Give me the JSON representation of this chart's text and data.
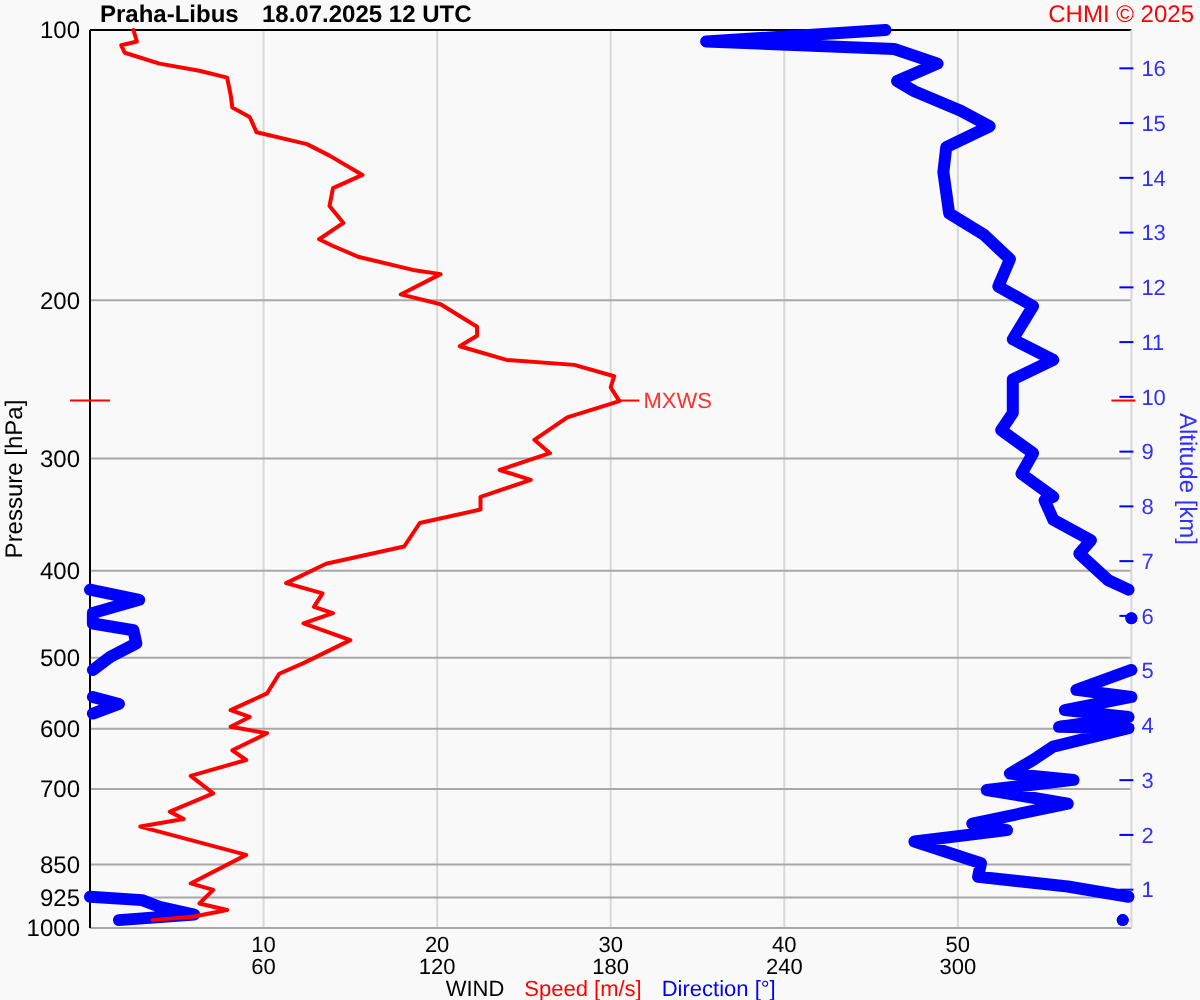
{
  "chart_data": {
    "type": "line",
    "title": "Praha-Libus",
    "subtitle": "18.07.2025 12 UTC",
    "xlabel": "WIND",
    "ylabel": "Pressure [hPa]",
    "y2label": "Altitude [km]",
    "annotations": [
      "CHMI © 2025",
      {
        "text": "MXWS",
        "x": 30.5,
        "y": 258.6
      }
    ],
    "xlim": [
      0,
      60
    ],
    "x2lim": [
      0,
      360
    ],
    "xticks": [
      10,
      20,
      30,
      40,
      50
    ],
    "x2ticks": [
      60,
      120,
      180,
      240,
      300
    ],
    "ylim": [
      1000,
      100
    ],
    "log": "y",
    "yticks": [
      100,
      200,
      300,
      400,
      500,
      600,
      700,
      850,
      925,
      1000
    ],
    "y2lim": [
      0.3,
      16.7
    ],
    "y2ticks": [
      1,
      2,
      3,
      4,
      5,
      6,
      7,
      8,
      9,
      10,
      11,
      12,
      13,
      14,
      15,
      16
    ],
    "grid": true,
    "legend": "bottom",
    "series": [
      {
        "name": "Speed [m/s]",
        "color": "#ff0000",
        "x": [
          2.5,
          2.7,
          1.8,
          2.0,
          4.0,
          6.3,
          7.9,
          8.1,
          8.2,
          9.2,
          9.6,
          12.5,
          13.8,
          15.7,
          14.0,
          13.8,
          14.6,
          13.2,
          14.0,
          15.5,
          18.6,
          20.2,
          17.9,
          20.2,
          22.3,
          22.3,
          21.3,
          24.0,
          27.9,
          30.2,
          30.0,
          30.5,
          27.5,
          25.6,
          26.5,
          23.6,
          25.4,
          22.5,
          22.5,
          22.5,
          19.0,
          18.1,
          13.6,
          11.3,
          13.4,
          12.9,
          14.0,
          12.3,
          15.0,
          12.3,
          10.9,
          10.2,
          8.1,
          9.2,
          8.1,
          10.2,
          8.2,
          9.0,
          5.8,
          7.1,
          4.6,
          5.4,
          2.9,
          9.0,
          5.8,
          7.1,
          6.3,
          7.9,
          6.0,
          3.6
        ],
        "values": [
          100,
          103,
          104,
          106,
          109,
          111,
          113,
          118,
          122,
          125,
          130,
          134,
          138,
          145,
          150,
          157,
          164,
          171,
          174,
          179,
          185,
          187,
          197,
          202,
          214,
          219,
          225,
          233,
          236,
          243,
          250,
          259,
          270,
          286,
          296,
          309,
          317,
          331,
          337,
          342,
          354,
          376,
          393,
          413,
          424,
          439,
          446,
          458,
          478,
          507,
          521,
          548,
          572,
          582,
          597,
          607,
          634,
          650,
          677,
          708,
          742,
          756,
          771,
          829,
          892,
          907,
          939,
          955,
          971,
          980
        ]
      },
      {
        "name": "Direction [°]",
        "color": "#0000ff",
        "axis": "x2",
        "x": [
          275,
          213,
          278,
          293,
          279,
          285,
          301,
          311,
          296,
          295,
          297,
          309,
          318,
          314,
          326,
          319,
          333,
          319,
          319,
          315,
          326,
          322,
          333,
          330,
          333,
          346,
          342,
          352,
          359,
          null,
          0,
          17,
          1,
          1,
          15,
          16,
          7,
          1,
          null,
          360,
          null,
          1,
          10,
          1,
          null,
          360,
          341,
          360,
          337,
          359,
          335,
          359,
          333,
          326,
          318,
          340,
          310,
          338,
          305,
          317,
          285,
          308,
          307,
          338,
          359,
          null,
          0,
          18,
          24,
          36,
          10,
          null,
          357
        ],
        "values": [
          100,
          103,
          105,
          109,
          114,
          117,
          123,
          128,
          135,
          144,
          160,
          169,
          180,
          193,
          203,
          221,
          233,
          245,
          267,
          279,
          296,
          312,
          331,
          334,
          351,
          370,
          383,
          410,
          420,
          null,
          420,
          431,
          446,
          458,
          466,
          482,
          499,
          516,
          null,
          452,
          null,
          553,
          563,
          577,
          null,
          516,
          543,
          553,
          572,
          582,
          597,
          599,
          628,
          650,
          673,
          684,
          702,
          727,
          765,
          778,
          801,
          847,
          877,
          899,
          923,
          null,
          923,
          931,
          947,
          966,
          980,
          null,
          980
        ]
      }
    ]
  }
}
